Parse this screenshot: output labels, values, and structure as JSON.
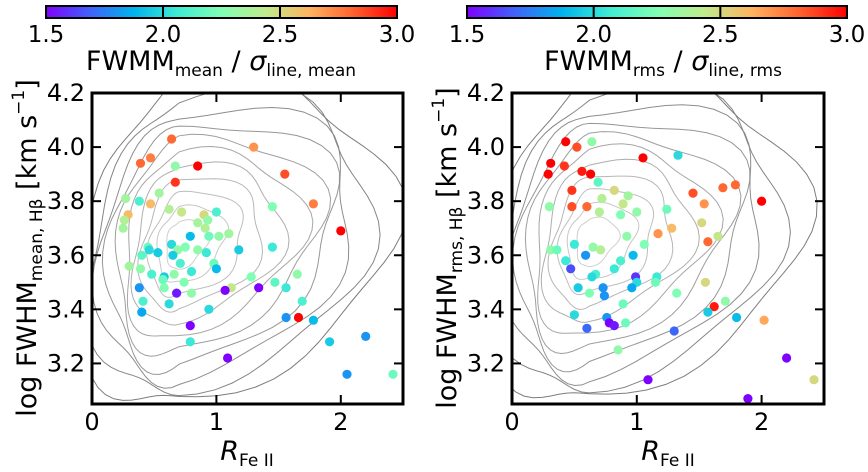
{
  "figure": {
    "colorbar_range": [
      1.5,
      3.0
    ],
    "colorbar_ticks": [
      "1.5",
      "2.0",
      "2.5",
      "3.0"
    ],
    "colormap": [
      "#8000ff",
      "#4062fa",
      "#01b3ec",
      "#40ecd4",
      "#80ffb4",
      "#c0eb8d",
      "#ffb360",
      "#ff6230",
      "#ff0000"
    ],
    "contour_color": "#8a8a8a"
  },
  "chart_data": [
    {
      "type": "scatter",
      "panel": "left",
      "colorbar_label": {
        "base": "FWMM",
        "sub1": "mean",
        "mid": " / ",
        "sigma": "σ",
        "sub2": "line, mean"
      },
      "ylabel": {
        "pre": "log FWHM",
        "sub": "mean, Hβ",
        "post": " [km s",
        "sup": "−1",
        "end": "]"
      },
      "xlabel": {
        "base": "R",
        "sub": "Fe II"
      },
      "xlim": [
        0,
        2.5
      ],
      "ylim": [
        3.05,
        4.2
      ],
      "xticks": [
        "0",
        "1",
        "2"
      ],
      "yticks": [
        "3.2",
        "3.4",
        "3.6",
        "3.8",
        "4.0",
        "4.2"
      ],
      "points": [
        {
          "x": 0.39,
          "y": 3.94,
          "c": 2.8
        },
        {
          "x": 0.47,
          "y": 3.96,
          "c": 2.75
        },
        {
          "x": 0.64,
          "y": 4.03,
          "c": 2.8
        },
        {
          "x": 0.67,
          "y": 3.93,
          "c": 2.3
        },
        {
          "x": 0.85,
          "y": 3.93,
          "c": 3.0
        },
        {
          "x": 1.3,
          "y": 4.0,
          "c": 2.7
        },
        {
          "x": 1.55,
          "y": 3.9,
          "c": 2.85
        },
        {
          "x": 0.67,
          "y": 3.87,
          "c": 2.9
        },
        {
          "x": 0.54,
          "y": 3.83,
          "c": 2.35
        },
        {
          "x": 0.27,
          "y": 3.81,
          "c": 2.35
        },
        {
          "x": 0.38,
          "y": 3.8,
          "c": 2.1
        },
        {
          "x": 0.47,
          "y": 3.79,
          "c": 2.6
        },
        {
          "x": 0.62,
          "y": 3.77,
          "c": 2.4
        },
        {
          "x": 0.72,
          "y": 3.76,
          "c": 2.45
        },
        {
          "x": 0.9,
          "y": 3.75,
          "c": 2.5
        },
        {
          "x": 0.93,
          "y": 3.73,
          "c": 2.3
        },
        {
          "x": 1.0,
          "y": 3.76,
          "c": 2.1
        },
        {
          "x": 1.45,
          "y": 3.78,
          "c": 2.25
        },
        {
          "x": 1.78,
          "y": 3.79,
          "c": 2.75
        },
        {
          "x": 0.29,
          "y": 3.75,
          "c": 2.6
        },
        {
          "x": 0.26,
          "y": 3.73,
          "c": 2.4
        },
        {
          "x": 0.85,
          "y": 3.72,
          "c": 2.35
        },
        {
          "x": 0.91,
          "y": 3.7,
          "c": 2.4
        },
        {
          "x": 0.25,
          "y": 3.7,
          "c": 2.35
        },
        {
          "x": 0.79,
          "y": 3.67,
          "c": 1.9
        },
        {
          "x": 0.94,
          "y": 3.67,
          "c": 2.2
        },
        {
          "x": 1.02,
          "y": 3.67,
          "c": 2.3
        },
        {
          "x": 1.1,
          "y": 3.68,
          "c": 2.35
        },
        {
          "x": 2.0,
          "y": 3.69,
          "c": 3.0
        },
        {
          "x": 0.45,
          "y": 3.63,
          "c": 2.2
        },
        {
          "x": 0.46,
          "y": 3.62,
          "c": 2.0
        },
        {
          "x": 0.53,
          "y": 3.61,
          "c": 1.95
        },
        {
          "x": 0.64,
          "y": 3.64,
          "c": 2.0
        },
        {
          "x": 0.69,
          "y": 3.62,
          "c": 2.3
        },
        {
          "x": 0.75,
          "y": 3.63,
          "c": 2.25
        },
        {
          "x": 0.85,
          "y": 3.62,
          "c": 2.3
        },
        {
          "x": 0.4,
          "y": 3.6,
          "c": 2.15
        },
        {
          "x": 0.65,
          "y": 3.6,
          "c": 1.95
        },
        {
          "x": 0.92,
          "y": 3.61,
          "c": 2.05
        },
        {
          "x": 1.18,
          "y": 3.62,
          "c": 1.95
        },
        {
          "x": 1.45,
          "y": 3.63,
          "c": 2.05
        },
        {
          "x": 0.3,
          "y": 3.56,
          "c": 2.35
        },
        {
          "x": 0.39,
          "y": 3.55,
          "c": 2.3
        },
        {
          "x": 0.71,
          "y": 3.57,
          "c": 2.1
        },
        {
          "x": 0.98,
          "y": 3.57,
          "c": 2.2
        },
        {
          "x": 0.8,
          "y": 3.54,
          "c": 2.05
        },
        {
          "x": 1.0,
          "y": 3.55,
          "c": 1.9
        },
        {
          "x": 0.48,
          "y": 3.53,
          "c": 2.1
        },
        {
          "x": 0.66,
          "y": 3.53,
          "c": 2.3
        },
        {
          "x": 0.58,
          "y": 3.52,
          "c": 1.95
        },
        {
          "x": 1.28,
          "y": 3.52,
          "c": 2.25
        },
        {
          "x": 1.65,
          "y": 3.53,
          "c": 2.3
        },
        {
          "x": 0.57,
          "y": 3.51,
          "c": 2.2
        },
        {
          "x": 0.74,
          "y": 3.5,
          "c": 2.25
        },
        {
          "x": 1.47,
          "y": 3.5,
          "c": 2.15
        },
        {
          "x": 0.38,
          "y": 3.48,
          "c": 1.8
        },
        {
          "x": 0.58,
          "y": 3.48,
          "c": 2.25
        },
        {
          "x": 1.12,
          "y": 3.48,
          "c": 2.45
        },
        {
          "x": 1.56,
          "y": 3.48,
          "c": 2.05
        },
        {
          "x": 1.34,
          "y": 3.48,
          "c": 1.5
        },
        {
          "x": 0.68,
          "y": 3.46,
          "c": 1.55
        },
        {
          "x": 0.8,
          "y": 3.46,
          "c": 2.3
        },
        {
          "x": 1.07,
          "y": 3.47,
          "c": 1.5
        },
        {
          "x": 0.41,
          "y": 3.43,
          "c": 2.1
        },
        {
          "x": 1.69,
          "y": 3.43,
          "c": 2.1
        },
        {
          "x": 0.62,
          "y": 3.42,
          "c": 2.0
        },
        {
          "x": 0.4,
          "y": 3.39,
          "c": 1.85
        },
        {
          "x": 0.94,
          "y": 3.4,
          "c": 2.0
        },
        {
          "x": 1.56,
          "y": 3.37,
          "c": 1.8
        },
        {
          "x": 1.66,
          "y": 3.37,
          "c": 3.0
        },
        {
          "x": 0.79,
          "y": 3.34,
          "c": 1.5
        },
        {
          "x": 1.78,
          "y": 3.36,
          "c": 1.9
        },
        {
          "x": 2.2,
          "y": 3.3,
          "c": 1.8
        },
        {
          "x": 0.79,
          "y": 3.28,
          "c": 2.05
        },
        {
          "x": 1.91,
          "y": 3.28,
          "c": 1.95
        },
        {
          "x": 1.09,
          "y": 3.22,
          "c": 1.5
        },
        {
          "x": 2.05,
          "y": 3.16,
          "c": 1.8
        },
        {
          "x": 2.42,
          "y": 3.16,
          "c": 2.2
        }
      ]
    },
    {
      "type": "scatter",
      "panel": "right",
      "colorbar_label": {
        "base": "FWMM",
        "sub1": "rms",
        "mid": " / ",
        "sigma": "σ",
        "sub2": "line, rms"
      },
      "ylabel": {
        "pre": "log FWHM",
        "sub": "rms, Hβ",
        "post": " [km s",
        "sup": "−1",
        "end": "]"
      },
      "xlabel": {
        "base": "R",
        "sub": "Fe II"
      },
      "xlim": [
        0,
        2.5
      ],
      "ylim": [
        3.05,
        4.2
      ],
      "xticks": [
        "0",
        "1",
        "2"
      ],
      "yticks": [
        "3.2",
        "3.4",
        "3.6",
        "3.8",
        "4.0",
        "4.2"
      ],
      "points": [
        {
          "x": 0.43,
          "y": 4.02,
          "c": 3.0
        },
        {
          "x": 0.52,
          "y": 4.0,
          "c": 2.85
        },
        {
          "x": 0.64,
          "y": 4.02,
          "c": 2.3
        },
        {
          "x": 1.05,
          "y": 3.96,
          "c": 3.0
        },
        {
          "x": 1.33,
          "y": 3.97,
          "c": 2.0
        },
        {
          "x": 0.31,
          "y": 3.94,
          "c": 3.0
        },
        {
          "x": 0.42,
          "y": 3.93,
          "c": 2.9
        },
        {
          "x": 0.29,
          "y": 3.9,
          "c": 3.0
        },
        {
          "x": 0.56,
          "y": 3.91,
          "c": 2.95
        },
        {
          "x": 0.63,
          "y": 3.9,
          "c": 3.0
        },
        {
          "x": 0.69,
          "y": 3.87,
          "c": 2.15
        },
        {
          "x": 1.69,
          "y": 3.85,
          "c": 2.8
        },
        {
          "x": 1.79,
          "y": 3.86,
          "c": 2.8
        },
        {
          "x": 0.48,
          "y": 3.84,
          "c": 2.9
        },
        {
          "x": 0.82,
          "y": 3.84,
          "c": 2.5
        },
        {
          "x": 0.93,
          "y": 3.82,
          "c": 2.35
        },
        {
          "x": 1.45,
          "y": 3.83,
          "c": 2.85
        },
        {
          "x": 0.72,
          "y": 3.81,
          "c": 2.4
        },
        {
          "x": 0.89,
          "y": 3.79,
          "c": 2.45
        },
        {
          "x": 1.54,
          "y": 3.79,
          "c": 2.7
        },
        {
          "x": 2.0,
          "y": 3.8,
          "c": 3.0
        },
        {
          "x": 0.3,
          "y": 3.78,
          "c": 2.3
        },
        {
          "x": 0.48,
          "y": 3.78,
          "c": 2.85
        },
        {
          "x": 0.6,
          "y": 3.78,
          "c": 2.8
        },
        {
          "x": 0.7,
          "y": 3.76,
          "c": 2.4
        },
        {
          "x": 1.0,
          "y": 3.76,
          "c": 2.3
        },
        {
          "x": 1.24,
          "y": 3.77,
          "c": 2.2
        },
        {
          "x": 0.87,
          "y": 3.75,
          "c": 2.25
        },
        {
          "x": 1.28,
          "y": 3.7,
          "c": 2.6
        },
        {
          "x": 1.52,
          "y": 3.72,
          "c": 2.5
        },
        {
          "x": 0.92,
          "y": 3.67,
          "c": 2.3
        },
        {
          "x": 1.17,
          "y": 3.68,
          "c": 2.7
        },
        {
          "x": 1.57,
          "y": 3.65,
          "c": 2.8
        },
        {
          "x": 1.65,
          "y": 3.67,
          "c": 2.45
        },
        {
          "x": 0.5,
          "y": 3.64,
          "c": 2.05
        },
        {
          "x": 0.65,
          "y": 3.63,
          "c": 2.3
        },
        {
          "x": 1.06,
          "y": 3.64,
          "c": 2.25
        },
        {
          "x": 0.31,
          "y": 3.62,
          "c": 2.3
        },
        {
          "x": 0.36,
          "y": 3.62,
          "c": 2.2
        },
        {
          "x": 0.71,
          "y": 3.62,
          "c": 2.4
        },
        {
          "x": 0.43,
          "y": 3.58,
          "c": 2.05
        },
        {
          "x": 0.59,
          "y": 3.6,
          "c": 1.8
        },
        {
          "x": 0.97,
          "y": 3.6,
          "c": 1.9
        },
        {
          "x": 0.87,
          "y": 3.58,
          "c": 2.1
        },
        {
          "x": 0.47,
          "y": 3.55,
          "c": 1.65
        },
        {
          "x": 0.82,
          "y": 3.55,
          "c": 2.05
        },
        {
          "x": 0.67,
          "y": 3.53,
          "c": 2.1
        },
        {
          "x": 0.64,
          "y": 3.52,
          "c": 2.0
        },
        {
          "x": 0.99,
          "y": 3.52,
          "c": 1.6
        },
        {
          "x": 1.16,
          "y": 3.52,
          "c": 2.05
        },
        {
          "x": 1.0,
          "y": 3.5,
          "c": 2.0
        },
        {
          "x": 1.15,
          "y": 3.5,
          "c": 2.2
        },
        {
          "x": 1.55,
          "y": 3.5,
          "c": 2.5
        },
        {
          "x": 0.53,
          "y": 3.48,
          "c": 1.95
        },
        {
          "x": 0.73,
          "y": 3.48,
          "c": 1.8
        },
        {
          "x": 0.96,
          "y": 3.48,
          "c": 1.85
        },
        {
          "x": 0.62,
          "y": 3.46,
          "c": 2.25
        },
        {
          "x": 1.32,
          "y": 3.46,
          "c": 2.25
        },
        {
          "x": 0.74,
          "y": 3.45,
          "c": 1.8
        },
        {
          "x": 1.71,
          "y": 3.43,
          "c": 2.3
        },
        {
          "x": 0.89,
          "y": 3.42,
          "c": 2.2
        },
        {
          "x": 1.62,
          "y": 3.41,
          "c": 2.95
        },
        {
          "x": 1.57,
          "y": 3.39,
          "c": 1.95
        },
        {
          "x": 0.5,
          "y": 3.38,
          "c": 2.0
        },
        {
          "x": 0.76,
          "y": 3.37,
          "c": 1.8
        },
        {
          "x": 1.8,
          "y": 3.37,
          "c": 1.9
        },
        {
          "x": 2.02,
          "y": 3.36,
          "c": 2.65
        },
        {
          "x": 0.78,
          "y": 3.35,
          "c": 1.5
        },
        {
          "x": 0.82,
          "y": 3.34,
          "c": 1.55
        },
        {
          "x": 0.91,
          "y": 3.35,
          "c": 2.2
        },
        {
          "x": 0.6,
          "y": 3.33,
          "c": 1.7
        },
        {
          "x": 1.3,
          "y": 3.32,
          "c": 1.7
        },
        {
          "x": 0.85,
          "y": 3.25,
          "c": 2.3
        },
        {
          "x": 2.2,
          "y": 3.22,
          "c": 1.5
        },
        {
          "x": 1.09,
          "y": 3.14,
          "c": 1.5
        },
        {
          "x": 2.42,
          "y": 3.14,
          "c": 2.5
        },
        {
          "x": 1.89,
          "y": 3.07,
          "c": 1.5
        }
      ]
    }
  ]
}
